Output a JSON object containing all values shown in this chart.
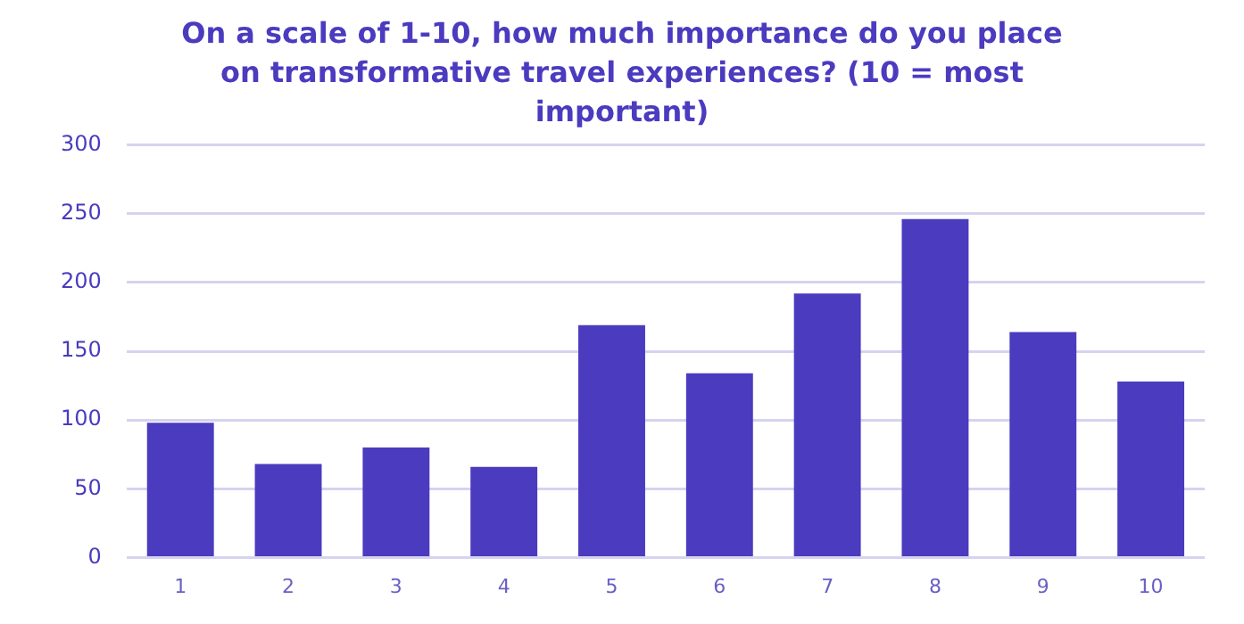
{
  "chart_data": {
    "type": "bar",
    "title": "On a scale of 1-10, how much importance do you place on transformative travel experiences? (10 = most important)",
    "categories": [
      "1",
      "2",
      "3",
      "4",
      "5",
      "6",
      "7",
      "8",
      "9",
      "10"
    ],
    "values": [
      98,
      68,
      80,
      66,
      169,
      134,
      192,
      246,
      164,
      128
    ],
    "color": "#4a3bbf",
    "ylim": [
      0,
      300
    ],
    "yticks": [
      0,
      50,
      100,
      150,
      200,
      250,
      300
    ],
    "grid": "y",
    "legend": false
  }
}
